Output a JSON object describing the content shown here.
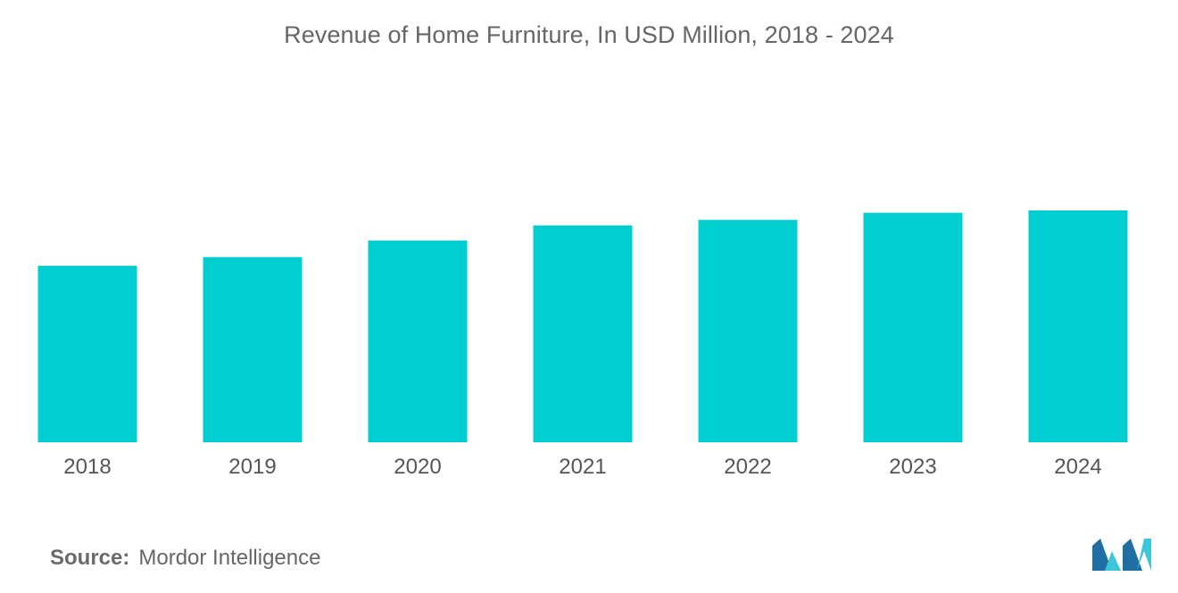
{
  "chart_data": {
    "type": "bar",
    "title": "Revenue of Home Furniture, In USD Million, 2018 - 2024",
    "xlabel": "",
    "ylabel": "",
    "categories": [
      "2018",
      "2019",
      "2020",
      "2021",
      "2022",
      "2023",
      "2024"
    ],
    "values": [
      223,
      234,
      255,
      274,
      281,
      290,
      293
    ],
    "ylim": [
      0,
      400
    ],
    "grid": false,
    "legend": "none",
    "bar_color": "#00CED1"
  },
  "source": {
    "label": "Source:",
    "text": "Mordor Intelligence"
  },
  "colors": {
    "bar": "#00CED1",
    "logo_dark": "#1f6fa3",
    "logo_light": "#3cc6d8"
  }
}
